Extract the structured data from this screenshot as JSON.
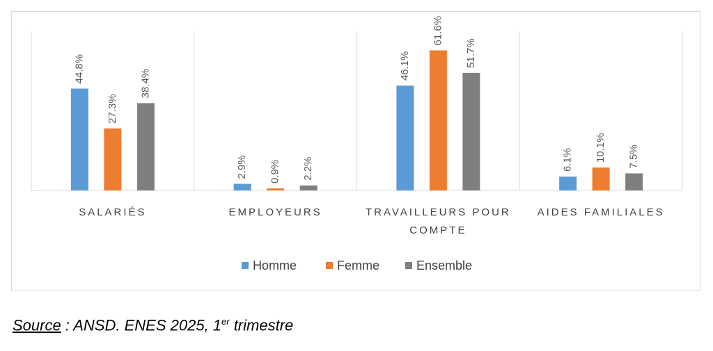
{
  "chart_data": {
    "type": "bar",
    "categories": [
      "SALARIÉS",
      "EMPLOYEURS",
      "TRAVAILLEURS POUR COMPTE",
      "AIDES FAMILIALES"
    ],
    "series": [
      {
        "name": "Homme",
        "color": "#5b9bd5",
        "values": [
          44.8,
          2.9,
          46.1,
          6.1
        ],
        "value_labels": [
          "44.8%",
          "2.9%",
          "46.1%",
          "6.1%"
        ]
      },
      {
        "name": "Femme",
        "color": "#ed7d31",
        "values": [
          27.3,
          0.9,
          61.6,
          10.1
        ],
        "value_labels": [
          "27.3%",
          "0.9%",
          "61.6%",
          "10.1%"
        ]
      },
      {
        "name": "Ensemble",
        "color": "#7f7f7f",
        "values": [
          38.4,
          2.2,
          51.7,
          7.5
        ],
        "value_labels": [
          "38.4%",
          "2.2%",
          "51.7%",
          "7.5%"
        ]
      }
    ],
    "ylim": [
      0,
      70
    ],
    "legend": "bottom"
  },
  "source": {
    "label": "Source",
    "text": " : ANSD. ENES 2025, 1",
    "sup": "er",
    "rest": " trimestre"
  }
}
